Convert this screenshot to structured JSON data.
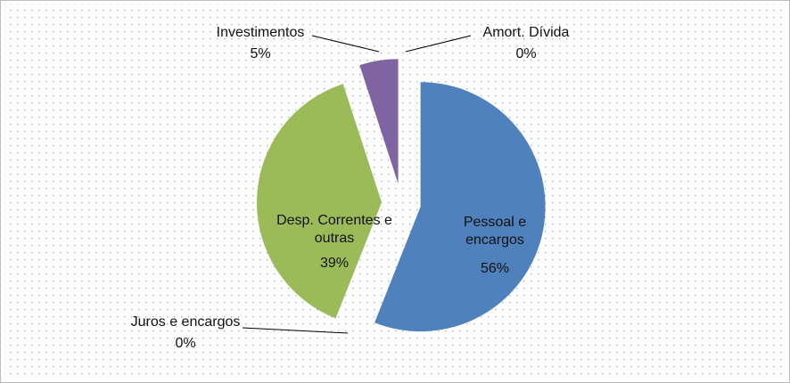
{
  "chart_data": {
    "type": "pie",
    "categories": [
      "Pessoal e encargos",
      "Juros e encargos",
      "Desp. Correntes e outras",
      "Investimentos",
      "Amort. Dívida"
    ],
    "values": [
      56,
      0,
      39,
      5,
      0
    ],
    "value_labels": [
      "56%",
      "0%",
      "39%",
      "5%",
      "0%"
    ],
    "colors": [
      "#4f81bd",
      "#c0504d",
      "#9bbb59",
      "#8064a2",
      "#4bacc6"
    ]
  }
}
